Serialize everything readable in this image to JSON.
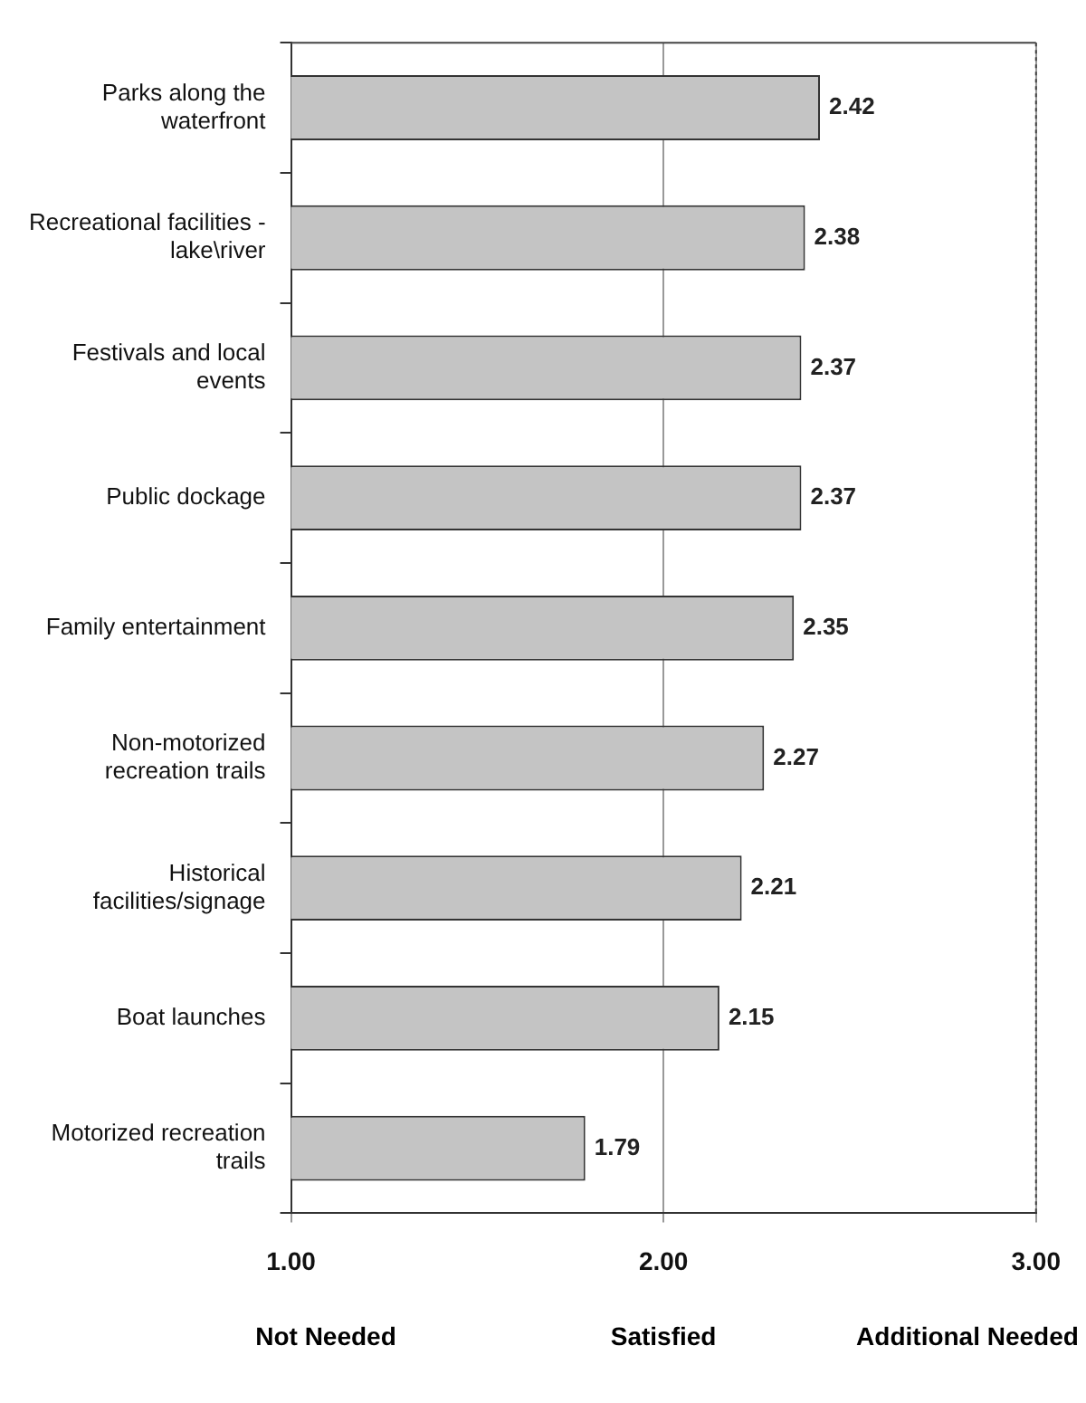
{
  "chart_data": {
    "type": "bar",
    "orientation": "horizontal",
    "categories": [
      "Parks along the waterfront",
      "Recreational facilities - lake\\river",
      "Festivals and local events",
      "Public dockage",
      "Family entertainment",
      "Non-motorized recreation trails",
      "Historical facilities/signage",
      "Boat launches",
      "Motorized recreation trails"
    ],
    "values": [
      2.42,
      2.38,
      2.37,
      2.37,
      2.35,
      2.27,
      2.21,
      2.15,
      1.79
    ],
    "color": "#c4c4c4",
    "xlim": [
      1,
      3
    ],
    "xticks": [
      {
        "value": 1,
        "label": "1.00"
      },
      {
        "value": 2,
        "label": "2.00"
      },
      {
        "value": 3,
        "label": "3.00"
      }
    ],
    "grid": "x",
    "data_labels": true,
    "legend": false,
    "annotations": [
      "Not Needed",
      "Satisfied",
      "Additional Needed"
    ]
  }
}
